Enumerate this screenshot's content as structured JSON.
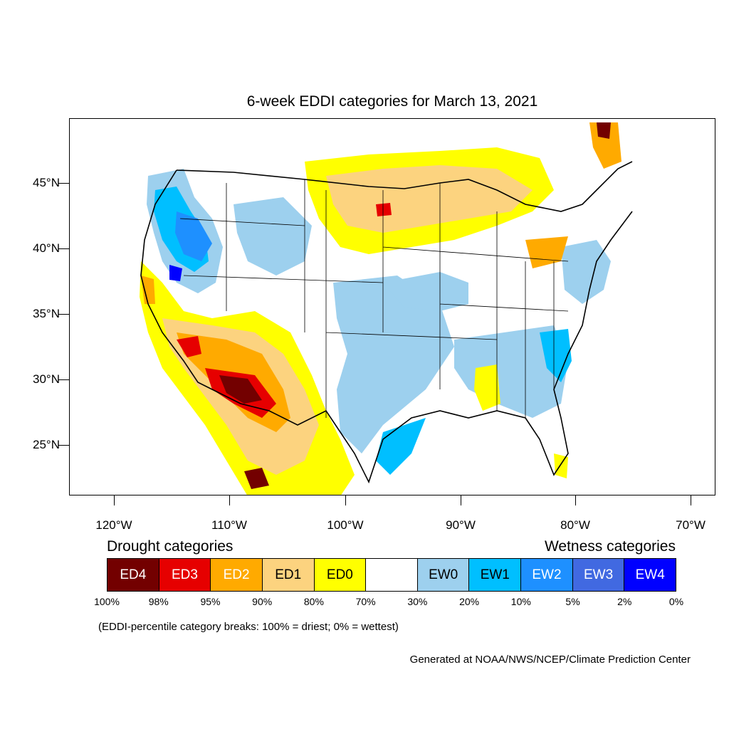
{
  "title": "6-week EDDI categories for March 13, 2021",
  "lat_labels": [
    "45°N",
    "40°N",
    "35°N",
    "30°N",
    "25°N"
  ],
  "lon_labels": [
    "120°W",
    "110°W",
    "100°W",
    "90°W",
    "80°W",
    "70°W"
  ],
  "legend": {
    "drought_heading": "Drought categories",
    "wetness_heading": "Wetness categories",
    "categories": [
      {
        "label": "ED4",
        "color": "#730000",
        "text_color": "#ffffff"
      },
      {
        "label": "ED3",
        "color": "#e60000",
        "text_color": "#ffffff"
      },
      {
        "label": "ED2",
        "color": "#ffaa00",
        "text_color": "#ffffff"
      },
      {
        "label": "ED1",
        "color": "#fcd37f",
        "text_color": "#000000"
      },
      {
        "label": "ED0",
        "color": "#ffff00",
        "text_color": "#000000"
      },
      {
        "label": "",
        "color": "#ffffff",
        "text_color": "#000000"
      },
      {
        "label": "EW0",
        "color": "#9dd0ee",
        "text_color": "#000000"
      },
      {
        "label": "EW1",
        "color": "#00bfff",
        "text_color": "#000000"
      },
      {
        "label": "EW2",
        "color": "#1e90ff",
        "text_color": "#ffffff"
      },
      {
        "label": "EW3",
        "color": "#4169e1",
        "text_color": "#ffffff"
      },
      {
        "label": "EW4",
        "color": "#0000ff",
        "text_color": "#ffffff"
      }
    ],
    "breaks": [
      "100%",
      "98%",
      "95%",
      "90%",
      "80%",
      "70%",
      "30%",
      "20%",
      "10%",
      "5%",
      "2%",
      "0%"
    ]
  },
  "footnote": "(EDDI-percentile category breaks: 100% = driest; 0% = wettest)",
  "credit": "Generated at NOAA/NWS/NCEP/Climate Prediction Center"
}
